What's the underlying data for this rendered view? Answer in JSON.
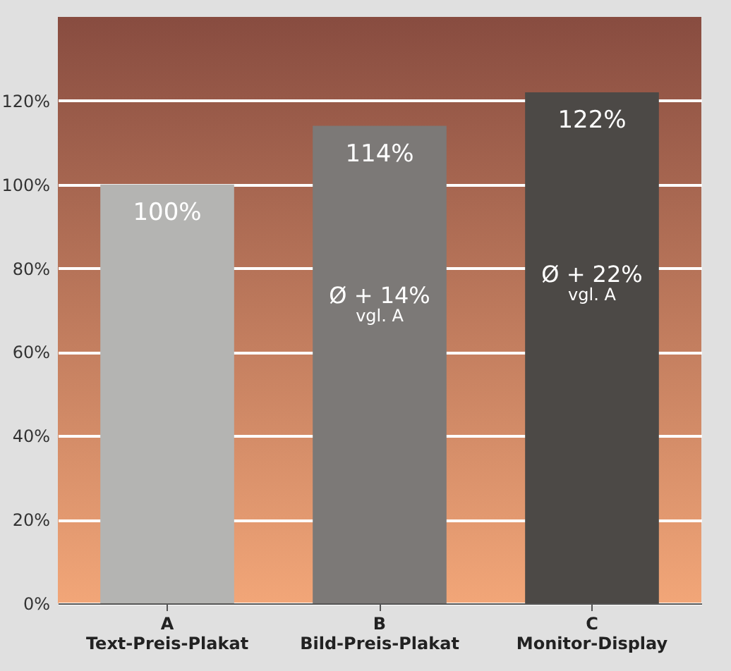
{
  "chart_data": {
    "type": "bar",
    "categories": [
      "A\nText-Preis-Plakat",
      "B\nBild-Preis-Plakat",
      "C\nMonitor-Display"
    ],
    "values": [
      100,
      114,
      122
    ],
    "colors": [
      "#b4b4b2",
      "#7c7977",
      "#4c4946"
    ],
    "value_labels": [
      "100%",
      "114%",
      "122%"
    ],
    "annotations": [
      "Ø + 14%\nvgl. A",
      "Ø + 22%\nvgl. A"
    ],
    "ylim": [
      0,
      140
    ],
    "yticks": [
      {
        "value": 0,
        "label": "0%"
      },
      {
        "value": 20,
        "label": "20%"
      },
      {
        "value": 40,
        "label": "40%"
      },
      {
        "value": 60,
        "label": "60%"
      },
      {
        "value": 80,
        "label": "80%"
      },
      {
        "value": 100,
        "label": "100%"
      },
      {
        "value": 120,
        "label": "120%"
      }
    ],
    "grid": "y",
    "legend": false
  }
}
